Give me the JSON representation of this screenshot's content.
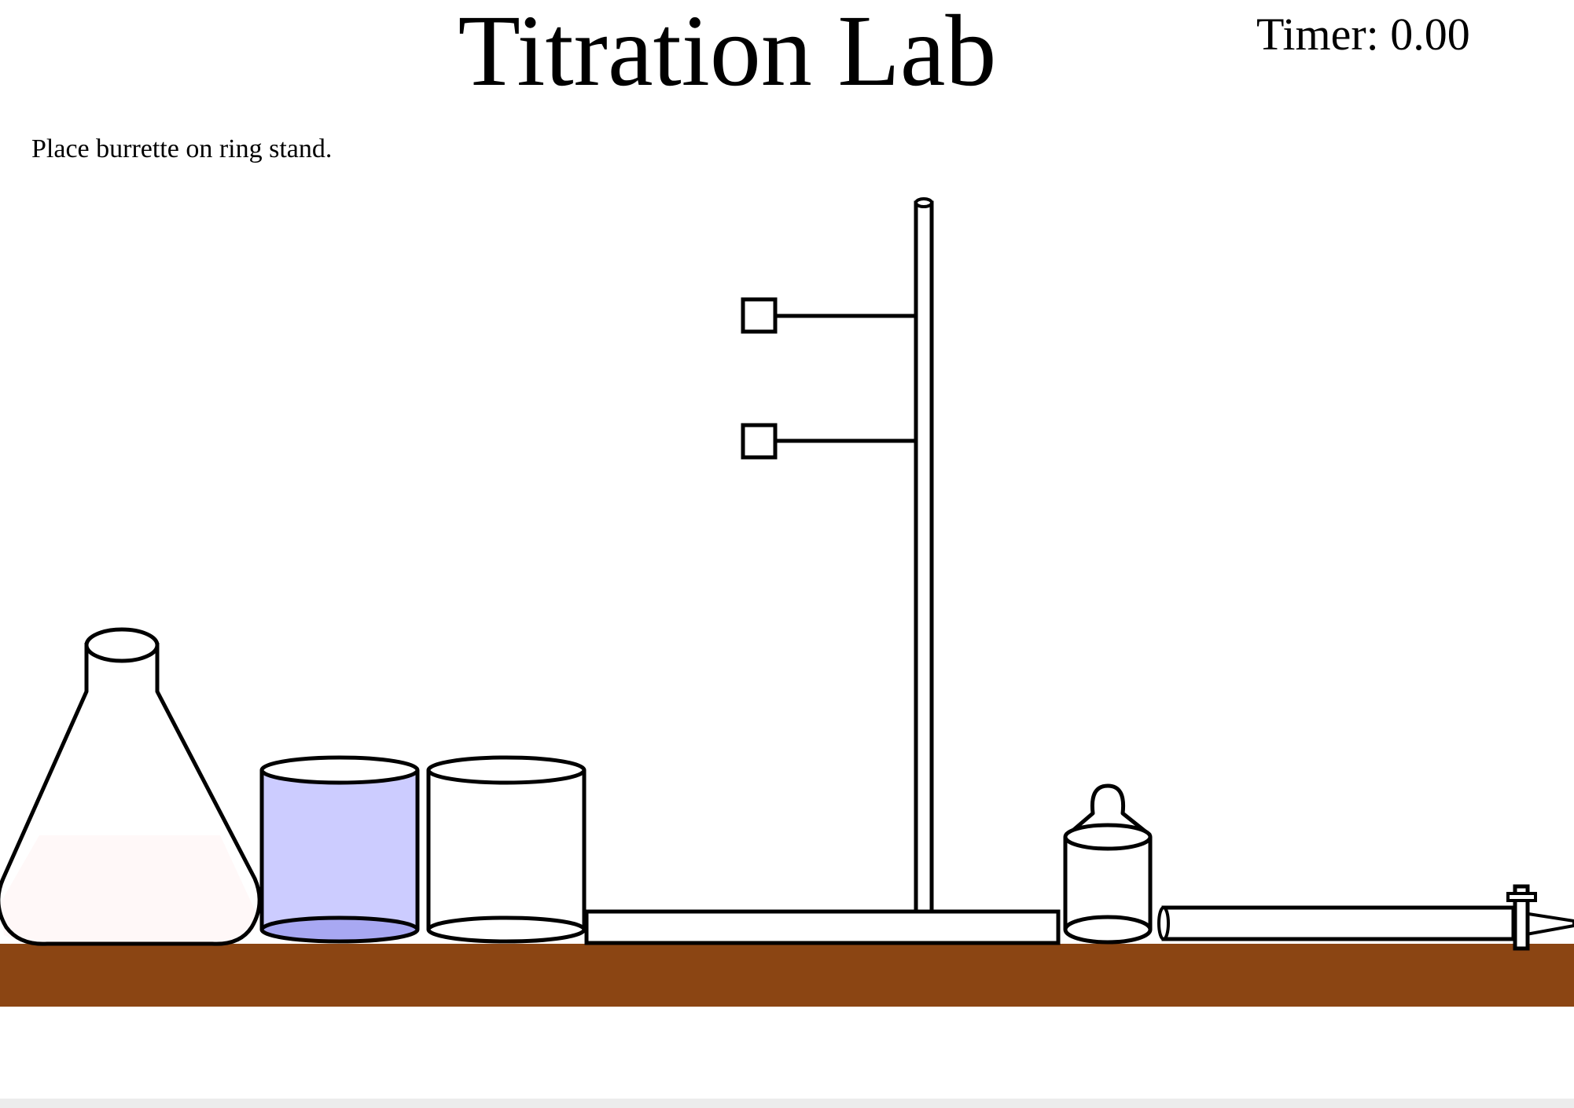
{
  "header": {
    "title": "Titration Lab",
    "timer_label": "Timer:",
    "timer_value": "0.00"
  },
  "instruction": {
    "text": "Place burrette on ring stand."
  },
  "colors": {
    "bench": "#8B4513",
    "beaker_liquid": "#ccccff",
    "beaker_liquid_bottom": "#a8a8f2",
    "flask_liquid": "#fff8f8",
    "outline": "#000000",
    "background": "#ffffff"
  },
  "equipment": [
    {
      "name": "erlenmeyer-flask",
      "interactable": true
    },
    {
      "name": "beaker-with-solution",
      "interactable": true
    },
    {
      "name": "empty-beaker",
      "interactable": true
    },
    {
      "name": "ring-stand",
      "interactable": true
    },
    {
      "name": "indicator-bottle",
      "interactable": true
    },
    {
      "name": "burette",
      "interactable": true
    }
  ]
}
